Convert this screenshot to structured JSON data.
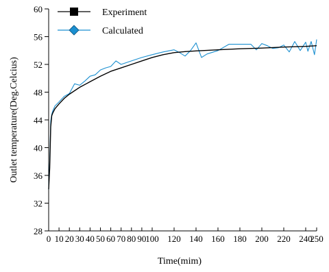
{
  "chart_data": {
    "type": "line",
    "title": "",
    "xlabel": "Time(mim)",
    "ylabel": "Outlet temperature(Deg.Celcius)",
    "xlim": [
      0,
      250
    ],
    "ylim": [
      28,
      60
    ],
    "xticks": [
      0,
      10,
      20,
      30,
      40,
      50,
      60,
      70,
      80,
      90,
      100,
      120,
      140,
      160,
      180,
      200,
      220,
      240,
      250
    ],
    "xtick_labels": [
      "0",
      "10",
      "20",
      "30",
      "40",
      "50",
      "60",
      "70",
      "80",
      "90",
      "100",
      "120",
      "140",
      "160",
      "180",
      "200",
      "220",
      "240",
      "250"
    ],
    "yticks": [
      28,
      32,
      36,
      40,
      44,
      48,
      52,
      56,
      60
    ],
    "ytick_labels": [
      "28",
      "32",
      "36",
      "40",
      "44",
      "48",
      "52",
      "56",
      "60"
    ],
    "grid": false,
    "legend_position": "top-left",
    "series": [
      {
        "name": "Experiment",
        "color": "#000000",
        "marker": "square",
        "x": [
          0,
          1,
          2,
          3,
          4,
          6,
          10,
          15,
          20,
          30,
          40,
          50,
          60,
          70,
          80,
          90,
          100,
          110,
          120,
          130,
          140,
          160,
          180,
          200,
          220,
          240,
          250
        ],
        "y": [
          34,
          37,
          43,
          44.6,
          45,
          45.6,
          46.3,
          47.1,
          47.7,
          48.7,
          49.5,
          50.3,
          51.0,
          51.5,
          52.0,
          52.5,
          53.0,
          53.4,
          53.7,
          53.85,
          53.95,
          54.1,
          54.25,
          54.35,
          54.5,
          54.6,
          54.7
        ]
      },
      {
        "name": "Calculated",
        "color": "#1a8fd0",
        "marker": "diamond",
        "x": [
          0,
          1,
          2,
          3,
          4,
          6,
          10,
          15,
          20,
          25,
          30,
          35,
          40,
          45,
          50,
          55,
          60,
          65,
          70,
          80,
          90,
          100,
          110,
          120,
          125,
          130,
          135,
          140,
          145,
          150,
          160,
          170,
          175,
          180,
          190,
          195,
          200,
          205,
          210,
          215,
          220,
          225,
          230,
          235,
          240,
          242,
          245,
          248,
          250
        ],
        "y": [
          34,
          38,
          43.8,
          44.8,
          45.3,
          46.0,
          46.6,
          47.4,
          47.8,
          49.2,
          49.0,
          49.6,
          50.3,
          50.5,
          51.2,
          51.5,
          51.7,
          52.5,
          52.0,
          52.5,
          53.0,
          53.4,
          53.8,
          54.1,
          53.7,
          53.2,
          54.0,
          55.1,
          53.0,
          53.5,
          54.0,
          54.9,
          54.9,
          54.9,
          54.9,
          54.1,
          55.0,
          54.7,
          54.3,
          54.4,
          54.8,
          53.8,
          55.3,
          54.0,
          55.2,
          53.9,
          55.3,
          53.4,
          55.6
        ]
      }
    ]
  }
}
